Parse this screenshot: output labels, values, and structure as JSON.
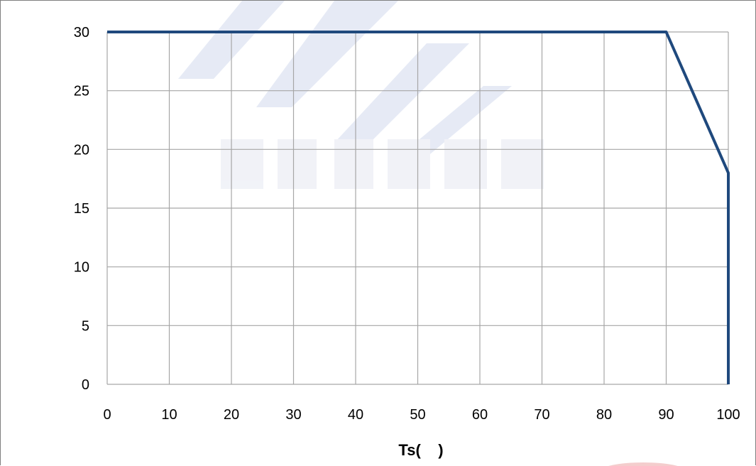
{
  "chart_data": {
    "type": "line",
    "title": "",
    "xlabel": "Ts(    )",
    "ylabel": "",
    "xlim": [
      0,
      100
    ],
    "ylim": [
      0,
      30
    ],
    "xticks": [
      0,
      10,
      20,
      30,
      40,
      50,
      60,
      70,
      80,
      90,
      100
    ],
    "yticks": [
      0,
      5,
      10,
      15,
      20,
      25,
      30
    ],
    "grid": true,
    "legend": "none",
    "series": [
      {
        "x": [
          0,
          90,
          100,
          100
        ],
        "y": [
          30,
          30,
          18,
          0
        ],
        "color": "#1f497d"
      }
    ]
  },
  "colors": {
    "grid": "#a6a6a6",
    "line": "#1f497d",
    "watermark": "#c7d0e6"
  }
}
